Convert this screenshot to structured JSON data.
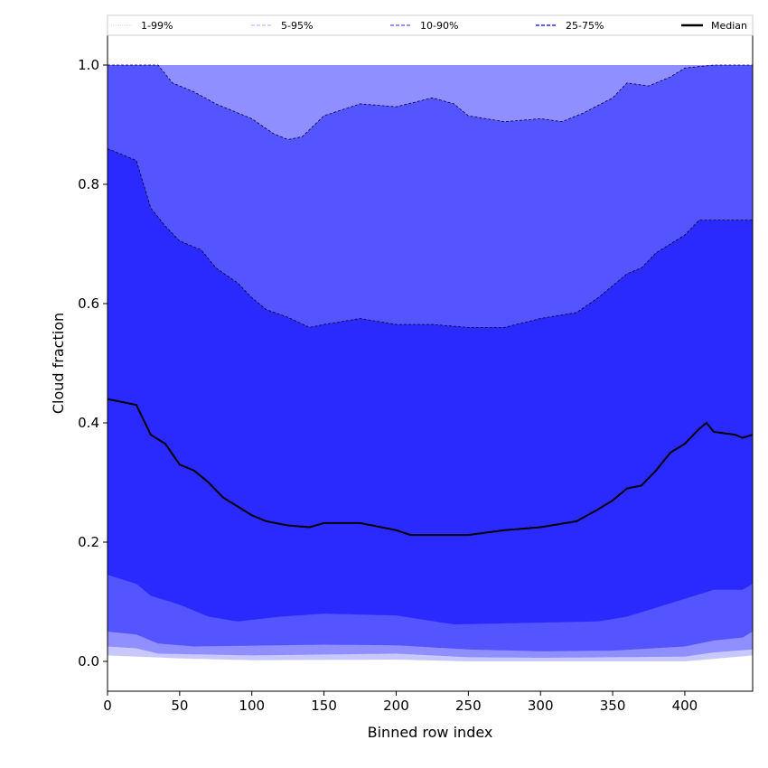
{
  "chart_data": {
    "type": "area",
    "title": "",
    "xlabel": "Binned row index",
    "ylabel": "Cloud fraction",
    "xlim": [
      0,
      447
    ],
    "ylim": [
      -0.05,
      1.05
    ],
    "xticks": [
      0,
      50,
      100,
      150,
      200,
      250,
      300,
      350,
      400
    ],
    "yticks": [
      0.0,
      0.2,
      0.4,
      0.6,
      0.8,
      1.0
    ],
    "legend_position": "top (above plot, horizontal)",
    "legend": [
      {
        "label": "1-99%",
        "color": "#c8c8ff",
        "style": "dotted"
      },
      {
        "label": "5-95%",
        "color": "#8f8fff",
        "style": "dashed"
      },
      {
        "label": "10-90%",
        "color": "#5555ff",
        "style": "dashed"
      },
      {
        "label": "25-75%",
        "color": "#2a2aff",
        "style": "dashed"
      },
      {
        "label": "Median",
        "color": "#000000",
        "style": "solid"
      }
    ],
    "percentiles": {
      "p1": [
        [
          0,
          0.01
        ],
        [
          50,
          0.005
        ],
        [
          100,
          0.002
        ],
        [
          200,
          0.003
        ],
        [
          250,
          0.0
        ],
        [
          400,
          0.0
        ],
        [
          447,
          0.01
        ]
      ],
      "p5": [
        [
          0,
          0.025
        ],
        [
          20,
          0.022
        ],
        [
          35,
          0.013
        ],
        [
          100,
          0.01
        ],
        [
          200,
          0.013
        ],
        [
          250,
          0.007
        ],
        [
          300,
          0.006
        ],
        [
          400,
          0.008
        ],
        [
          420,
          0.015
        ],
        [
          447,
          0.02
        ]
      ],
      "p10": [
        [
          0,
          0.05
        ],
        [
          20,
          0.045
        ],
        [
          35,
          0.03
        ],
        [
          60,
          0.025
        ],
        [
          150,
          0.028
        ],
        [
          200,
          0.027
        ],
        [
          250,
          0.02
        ],
        [
          300,
          0.017
        ],
        [
          350,
          0.018
        ],
        [
          400,
          0.025
        ],
        [
          420,
          0.035
        ],
        [
          440,
          0.04
        ],
        [
          447,
          0.05
        ]
      ],
      "p25": [
        [
          0,
          0.145
        ],
        [
          20,
          0.13
        ],
        [
          30,
          0.11
        ],
        [
          50,
          0.095
        ],
        [
          70,
          0.075
        ],
        [
          90,
          0.067
        ],
        [
          120,
          0.075
        ],
        [
          150,
          0.08
        ],
        [
          200,
          0.077
        ],
        [
          240,
          0.062
        ],
        [
          300,
          0.065
        ],
        [
          340,
          0.067
        ],
        [
          360,
          0.075
        ],
        [
          380,
          0.09
        ],
        [
          400,
          0.105
        ],
        [
          420,
          0.12
        ],
        [
          440,
          0.12
        ],
        [
          447,
          0.13
        ]
      ],
      "p50": [
        [
          0,
          0.44
        ],
        [
          10,
          0.435
        ],
        [
          20,
          0.43
        ],
        [
          30,
          0.38
        ],
        [
          40,
          0.365
        ],
        [
          50,
          0.33
        ],
        [
          60,
          0.32
        ],
        [
          70,
          0.3
        ],
        [
          80,
          0.275
        ],
        [
          90,
          0.26
        ],
        [
          100,
          0.245
        ],
        [
          110,
          0.235
        ],
        [
          125,
          0.228
        ],
        [
          140,
          0.225
        ],
        [
          150,
          0.232
        ],
        [
          175,
          0.232
        ],
        [
          200,
          0.22
        ],
        [
          210,
          0.212
        ],
        [
          250,
          0.212
        ],
        [
          275,
          0.22
        ],
        [
          300,
          0.225
        ],
        [
          325,
          0.235
        ],
        [
          340,
          0.255
        ],
        [
          350,
          0.27
        ],
        [
          360,
          0.29
        ],
        [
          370,
          0.295
        ],
        [
          380,
          0.32
        ],
        [
          390,
          0.35
        ],
        [
          400,
          0.365
        ],
        [
          410,
          0.39
        ],
        [
          415,
          0.4
        ],
        [
          420,
          0.385
        ],
        [
          435,
          0.38
        ],
        [
          440,
          0.375
        ],
        [
          447,
          0.38
        ]
      ],
      "p75": [
        [
          0,
          0.86
        ],
        [
          10,
          0.85
        ],
        [
          20,
          0.84
        ],
        [
          25,
          0.8
        ],
        [
          30,
          0.76
        ],
        [
          40,
          0.73
        ],
        [
          50,
          0.705
        ],
        [
          65,
          0.69
        ],
        [
          75,
          0.66
        ],
        [
          90,
          0.635
        ],
        [
          100,
          0.61
        ],
        [
          110,
          0.59
        ],
        [
          125,
          0.577
        ],
        [
          140,
          0.56
        ],
        [
          150,
          0.565
        ],
        [
          175,
          0.575
        ],
        [
          200,
          0.565
        ],
        [
          225,
          0.565
        ],
        [
          250,
          0.56
        ],
        [
          275,
          0.56
        ],
        [
          300,
          0.575
        ],
        [
          325,
          0.585
        ],
        [
          340,
          0.61
        ],
        [
          350,
          0.63
        ],
        [
          360,
          0.65
        ],
        [
          370,
          0.66
        ],
        [
          380,
          0.685
        ],
        [
          390,
          0.7
        ],
        [
          400,
          0.715
        ],
        [
          410,
          0.74
        ],
        [
          420,
          0.74
        ],
        [
          447,
          0.74
        ]
      ],
      "p90": [
        [
          0,
          1.0
        ],
        [
          35,
          1.0
        ],
        [
          45,
          0.97
        ],
        [
          60,
          0.955
        ],
        [
          75,
          0.935
        ],
        [
          90,
          0.92
        ],
        [
          100,
          0.91
        ],
        [
          115,
          0.885
        ],
        [
          125,
          0.875
        ],
        [
          135,
          0.88
        ],
        [
          150,
          0.915
        ],
        [
          175,
          0.935
        ],
        [
          200,
          0.93
        ],
        [
          225,
          0.945
        ],
        [
          240,
          0.935
        ],
        [
          250,
          0.915
        ],
        [
          275,
          0.905
        ],
        [
          300,
          0.91
        ],
        [
          315,
          0.905
        ],
        [
          330,
          0.92
        ],
        [
          350,
          0.945
        ],
        [
          360,
          0.97
        ],
        [
          375,
          0.965
        ],
        [
          390,
          0.98
        ],
        [
          400,
          0.995
        ],
        [
          420,
          1.0
        ],
        [
          447,
          1.0
        ]
      ],
      "p95": [
        [
          0,
          1.0
        ],
        [
          447,
          1.0
        ]
      ],
      "p99": [
        [
          0,
          1.0
        ],
        [
          447,
          1.0
        ]
      ]
    }
  }
}
